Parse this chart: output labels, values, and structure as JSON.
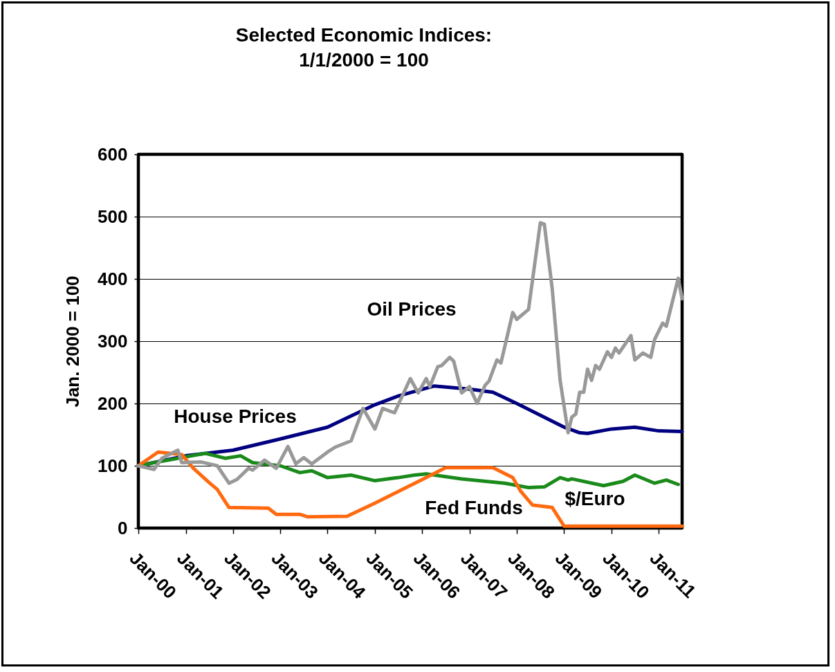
{
  "chart_data": {
    "type": "line",
    "title": "Selected Economic Indices:",
    "subtitle": "1/1/2000 = 100",
    "ylabel": "Jan. 2000 = 100",
    "xlim": [
      "2000-01",
      "2011-07"
    ],
    "xticks": [
      {
        "value": "2000-01",
        "label": "Jan-00"
      },
      {
        "value": "2001-01",
        "label": "Jan-01"
      },
      {
        "value": "2002-01",
        "label": "Jan-02"
      },
      {
        "value": "2003-01",
        "label": "Jan-03"
      },
      {
        "value": "2004-01",
        "label": "Jan-04"
      },
      {
        "value": "2005-01",
        "label": "Jan-05"
      },
      {
        "value": "2006-01",
        "label": "Jan-06"
      },
      {
        "value": "2007-01",
        "label": "Jan-07"
      },
      {
        "value": "2008-01",
        "label": "Jan-08"
      },
      {
        "value": "2009-01",
        "label": "Jan-09"
      },
      {
        "value": "2010-01",
        "label": "Jan-10"
      },
      {
        "value": "2011-01",
        "label": "Jan-11"
      }
    ],
    "ylim": [
      0,
      600
    ],
    "yticks": [
      0,
      100,
      200,
      300,
      400,
      500,
      600
    ],
    "grid": "y",
    "line_style": "solid",
    "marker": "none",
    "series": [
      {
        "name": "House Prices",
        "color": "#000080",
        "x": [
          "2000-01",
          "2001-01",
          "2002-01",
          "2003-01",
          "2004-01",
          "2004-07",
          "2005-01",
          "2005-07",
          "2006-04",
          "2007-01",
          "2007-07",
          "2008-01",
          "2008-07",
          "2009-01",
          "2009-05",
          "2009-07",
          "2010-01",
          "2010-07",
          "2011-01",
          "2011-07"
        ],
        "values": [
          100,
          116,
          125,
          143,
          162,
          180,
          198,
          212,
          228,
          223,
          218,
          200,
          181,
          162,
          153,
          152,
          159,
          162,
          156,
          155
        ]
      },
      {
        "name": "$/Euro",
        "color": "#1a8a1a",
        "x": [
          "2000-01",
          "2000-05",
          "2001-06",
          "2001-11",
          "2002-03",
          "2002-06",
          "2003-01",
          "2003-06",
          "2003-09",
          "2004-01",
          "2004-07",
          "2005-01",
          "2005-07",
          "2005-11",
          "2006-02",
          "2006-11",
          "2007-10",
          "2008-04",
          "2008-08",
          "2008-12",
          "2009-02",
          "2009-03",
          "2009-11",
          "2010-04",
          "2010-07",
          "2010-12",
          "2011-03",
          "2011-06"
        ],
        "values": [
          100,
          105,
          120,
          112,
          116,
          105,
          100,
          89,
          92,
          81,
          85,
          76,
          81,
          85,
          87,
          79,
          72,
          65,
          66,
          81,
          77,
          79,
          68,
          75,
          85,
          72,
          77,
          70
        ]
      },
      {
        "name": "Fed Funds",
        "color": "#ff6a10",
        "x": [
          "2000-01",
          "2000-06",
          "2000-12",
          "2001-03",
          "2001-07",
          "2001-09",
          "2001-12",
          "2002-10",
          "2002-12",
          "2003-06",
          "2003-08",
          "2004-06",
          "2005-01",
          "2006-02",
          "2006-07",
          "2007-07",
          "2007-12",
          "2008-02",
          "2008-05",
          "2008-10",
          "2009-01",
          "2011-07"
        ],
        "values": [
          100,
          122,
          118,
          96,
          73,
          62,
          33,
          32,
          22,
          22,
          18,
          19,
          40,
          81,
          97,
          97,
          81,
          59,
          37,
          33,
          3,
          3
        ]
      },
      {
        "name": "Oil Prices",
        "color": "#999999",
        "x": [
          "2000-01",
          "2000-05",
          "2000-07",
          "2000-11",
          "2000-12",
          "2001-05",
          "2001-09",
          "2001-12",
          "2002-02",
          "2002-05",
          "2002-06",
          "2002-09",
          "2002-12",
          "2003-03",
          "2003-05",
          "2003-07",
          "2003-09",
          "2004-01",
          "2004-03",
          "2004-07",
          "2004-10",
          "2005-01",
          "2005-03",
          "2005-06",
          "2005-10",
          "2005-12",
          "2006-02",
          "2006-03",
          "2006-05",
          "2006-06",
          "2006-08",
          "2006-09",
          "2006-11",
          "2007-01",
          "2007-03",
          "2007-05",
          "2007-06",
          "2007-08",
          "2007-09",
          "2007-12",
          "2008-01",
          "2008-04",
          "2008-07",
          "2008-08",
          "2008-10",
          "2008-12",
          "2009-02",
          "2009-03",
          "2009-04",
          "2009-05",
          "2009-06",
          "2009-07",
          "2009-08",
          "2009-09",
          "2009-10",
          "2009-12",
          "2010-01",
          "2010-02",
          "2010-03",
          "2010-06",
          "2010-07",
          "2010-09",
          "2010-11",
          "2010-12",
          "2011-02",
          "2011-03",
          "2011-06",
          "2011-07"
        ],
        "values": [
          100,
          94,
          112,
          125,
          105,
          106,
          100,
          72,
          78,
          96,
          93,
          109,
          96,
          131,
          103,
          113,
          103,
          122,
          130,
          140,
          192,
          159,
          192,
          185,
          240,
          217,
          240,
          227,
          259,
          261,
          274,
          268,
          217,
          227,
          200,
          229,
          236,
          270,
          265,
          346,
          335,
          351,
          490,
          488,
          384,
          237,
          153,
          178,
          183,
          218,
          218,
          255,
          237,
          261,
          255,
          283,
          274,
          289,
          281,
          309,
          270,
          281,
          274,
          303,
          329,
          324,
          401,
          368
        ]
      }
    ]
  }
}
